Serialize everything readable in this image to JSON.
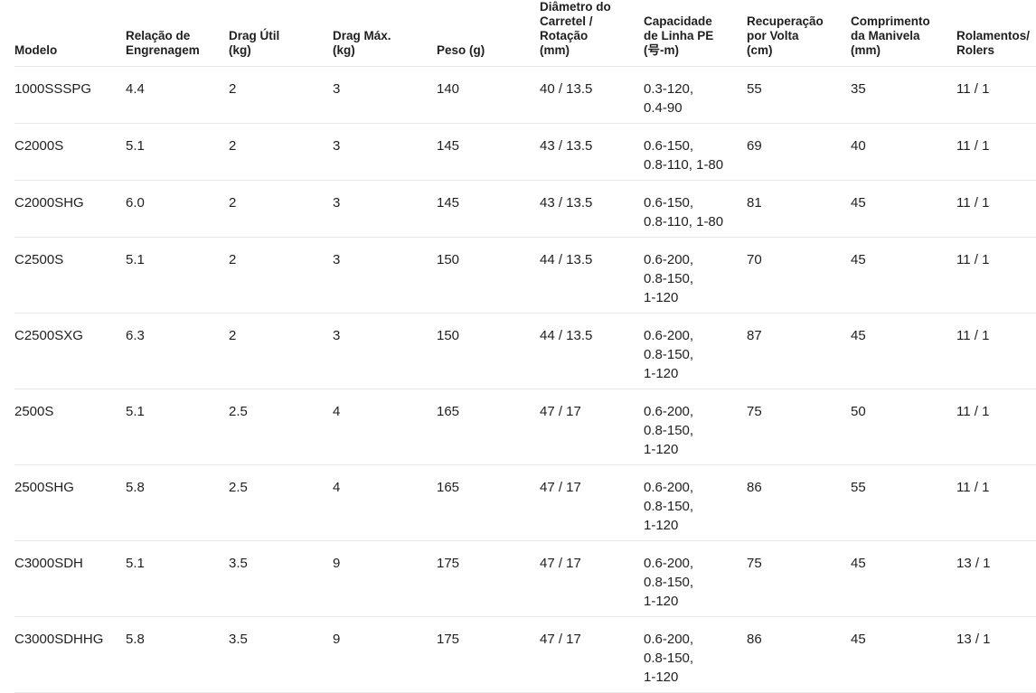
{
  "colors": {
    "background": "#ffffff",
    "text": "#1f1f1f",
    "divider": "#e9e9e9"
  },
  "table": {
    "columns": [
      {
        "key": "model",
        "label": "Modelo"
      },
      {
        "key": "gear_ratio",
        "label": "Relação de\nEngrenagem"
      },
      {
        "key": "drag_util",
        "label": "Drag Útil\n(kg)"
      },
      {
        "key": "drag_max",
        "label": "Drag Máx.\n(kg)"
      },
      {
        "key": "weight",
        "label": "Peso (g)"
      },
      {
        "key": "spool",
        "label": "Diâmetro do\nCarretel /\nRotação\n(mm)"
      },
      {
        "key": "line_capacity",
        "label": "Capacidade\nde Linha PE\n(号-m)"
      },
      {
        "key": "recovery",
        "label": "Recuperação\npor Volta\n(cm)"
      },
      {
        "key": "handle",
        "label": "Comprimento\nda Manivela\n(mm)"
      },
      {
        "key": "bearings",
        "label": "Rolamentos/\nRolers"
      }
    ],
    "rows": [
      {
        "model": "1000SSSPG",
        "gear_ratio": "4.4",
        "drag_util": "2",
        "drag_max": "3",
        "weight": "140",
        "spool": "40 / 13.5",
        "line_capacity": "0.3-120,\n0.4-90",
        "recovery": "55",
        "handle": "35",
        "bearings": "11 / 1"
      },
      {
        "model": "C2000S",
        "gear_ratio": "5.1",
        "drag_util": "2",
        "drag_max": "3",
        "weight": "145",
        "spool": "43 / 13.5",
        "line_capacity": "0.6-150,\n0.8-110, 1-80",
        "recovery": "69",
        "handle": "40",
        "bearings": "11 / 1"
      },
      {
        "model": "C2000SHG",
        "gear_ratio": "6.0",
        "drag_util": "2",
        "drag_max": "3",
        "weight": "145",
        "spool": "43 / 13.5",
        "line_capacity": "0.6-150,\n0.8-110, 1-80",
        "recovery": "81",
        "handle": "45",
        "bearings": "11 / 1"
      },
      {
        "model": "C2500S",
        "gear_ratio": "5.1",
        "drag_util": "2",
        "drag_max": "3",
        "weight": "150",
        "spool": "44 / 13.5",
        "line_capacity": "0.6-200,\n0.8-150,\n1-120",
        "recovery": "70",
        "handle": "45",
        "bearings": "11 / 1"
      },
      {
        "model": "C2500SXG",
        "gear_ratio": "6.3",
        "drag_util": "2",
        "drag_max": "3",
        "weight": "150",
        "spool": "44 / 13.5",
        "line_capacity": "0.6-200,\n0.8-150,\n1-120",
        "recovery": "87",
        "handle": "45",
        "bearings": "11 / 1"
      },
      {
        "model": "2500S",
        "gear_ratio": "5.1",
        "drag_util": "2.5",
        "drag_max": "4",
        "weight": "165",
        "spool": "47 / 17",
        "line_capacity": "0.6-200,\n0.8-150,\n1-120",
        "recovery": "75",
        "handle": "50",
        "bearings": "11 / 1"
      },
      {
        "model": "2500SHG",
        "gear_ratio": "5.8",
        "drag_util": "2.5",
        "drag_max": "4",
        "weight": "165",
        "spool": "47 / 17",
        "line_capacity": "0.6-200,\n0.8-150,\n1-120",
        "recovery": "86",
        "handle": "55",
        "bearings": "11 / 1"
      },
      {
        "model": "C3000SDH",
        "gear_ratio": "5.1",
        "drag_util": "3.5",
        "drag_max": "9",
        "weight": "175",
        "spool": "47 / 17",
        "line_capacity": "0.6-200,\n0.8-150,\n1-120",
        "recovery": "75",
        "handle": "45",
        "bearings": "13 / 1"
      },
      {
        "model": "C3000SDHHG",
        "gear_ratio": "5.8",
        "drag_util": "3.5",
        "drag_max": "9",
        "weight": "175",
        "spool": "47 / 17",
        "line_capacity": "0.6-200,\n0.8-150,\n1-120",
        "recovery": "86",
        "handle": "45",
        "bearings": "13 / 1"
      }
    ]
  }
}
